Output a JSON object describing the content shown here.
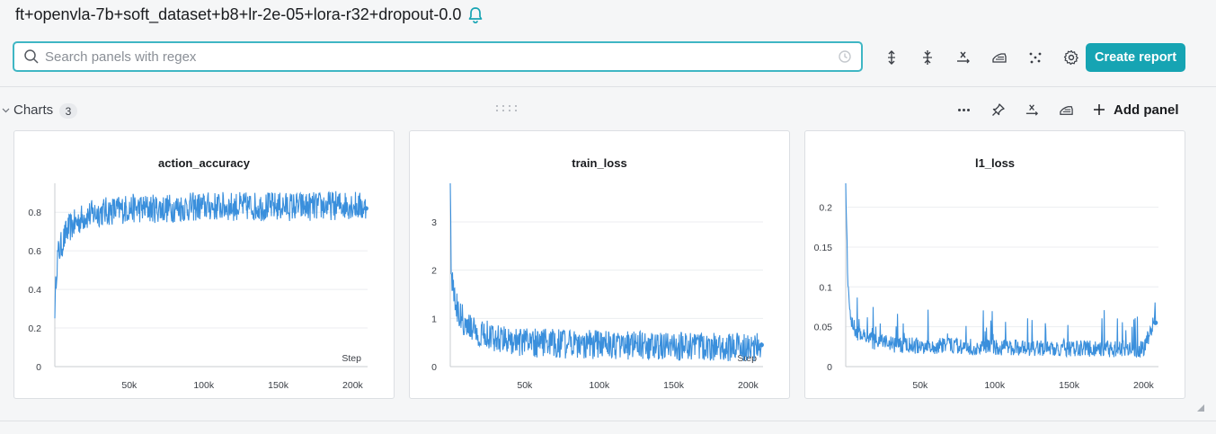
{
  "header": {
    "run_name": "ft+openvla-7b+soft_dataset+b8+lr-2e-05+lora-r32+dropout-0.0",
    "create_report_label": "Create report",
    "accent_color": "#16a4b3"
  },
  "search": {
    "placeholder": "Search panels with regex",
    "value": ""
  },
  "section": {
    "title": "Charts",
    "count": "3",
    "add_panel_label": "Add panel"
  },
  "toolbar_icons": [
    "expand-vertical-icon",
    "collapse-vertical-icon",
    "x-axis-icon",
    "smoothing-icon",
    "scatter-icon",
    "gear-icon"
  ],
  "section_icons": [
    "more-icon",
    "pin-icon",
    "x-axis-icon",
    "smoothing-icon",
    "plus-icon"
  ],
  "chart_data": [
    {
      "type": "line",
      "title": "action_accuracy",
      "xlabel": "Step",
      "ylabel": "",
      "color": "#3a8fdc",
      "x_ticks": [
        "50k",
        "100k",
        "150k",
        "200k"
      ],
      "y_ticks": [
        "0",
        "0.2",
        "0.4",
        "0.6",
        "0.8"
      ],
      "xlim": [
        0,
        210000
      ],
      "ylim": [
        0,
        0.95
      ],
      "series": [
        {
          "x": [
            0,
            1000,
            2000,
            4000,
            6000,
            8000,
            10000,
            15000,
            20000,
            30000,
            40000,
            50000,
            75000,
            100000,
            125000,
            150000,
            175000,
            200000,
            209000
          ],
          "y": [
            0.25,
            0.5,
            0.58,
            0.62,
            0.66,
            0.7,
            0.72,
            0.75,
            0.78,
            0.8,
            0.81,
            0.82,
            0.82,
            0.83,
            0.83,
            0.83,
            0.83,
            0.84,
            0.82
          ]
        }
      ]
    },
    {
      "type": "line",
      "title": "train_loss",
      "xlabel": "Step",
      "ylabel": "",
      "color": "#3a8fdc",
      "x_ticks": [
        "50k",
        "100k",
        "150k",
        "200k"
      ],
      "y_ticks": [
        "0",
        "1",
        "2",
        "3"
      ],
      "xlim": [
        0,
        210000
      ],
      "ylim": [
        0,
        3.8
      ],
      "series": [
        {
          "x": [
            0,
            500,
            1500,
            3000,
            5000,
            8000,
            12000,
            20000,
            30000,
            50000,
            75000,
            100000,
            125000,
            150000,
            175000,
            200000,
            209000
          ],
          "y": [
            3.8,
            2.2,
            1.7,
            1.4,
            1.2,
            1.0,
            0.85,
            0.7,
            0.6,
            0.5,
            0.47,
            0.45,
            0.43,
            0.42,
            0.41,
            0.4,
            0.45
          ]
        }
      ]
    },
    {
      "type": "line",
      "title": "l1_loss",
      "xlabel": "",
      "ylabel": "",
      "color": "#3a8fdc",
      "x_ticks": [
        "50k",
        "100k",
        "150k",
        "200k"
      ],
      "y_ticks": [
        "0",
        "0.05",
        "0.1",
        "0.15",
        "0.2"
      ],
      "xlim": [
        0,
        210000
      ],
      "ylim": [
        0,
        0.23
      ],
      "series": [
        {
          "x": [
            0,
            500,
            1500,
            3000,
            5000,
            8000,
            12000,
            20000,
            30000,
            50000,
            75000,
            100000,
            125000,
            150000,
            175000,
            200000,
            208000
          ],
          "y": [
            0.23,
            0.17,
            0.1,
            0.06,
            0.045,
            0.035,
            0.03,
            0.025,
            0.022,
            0.02,
            0.019,
            0.018,
            0.017,
            0.017,
            0.016,
            0.016,
            0.055
          ]
        }
      ]
    }
  ]
}
